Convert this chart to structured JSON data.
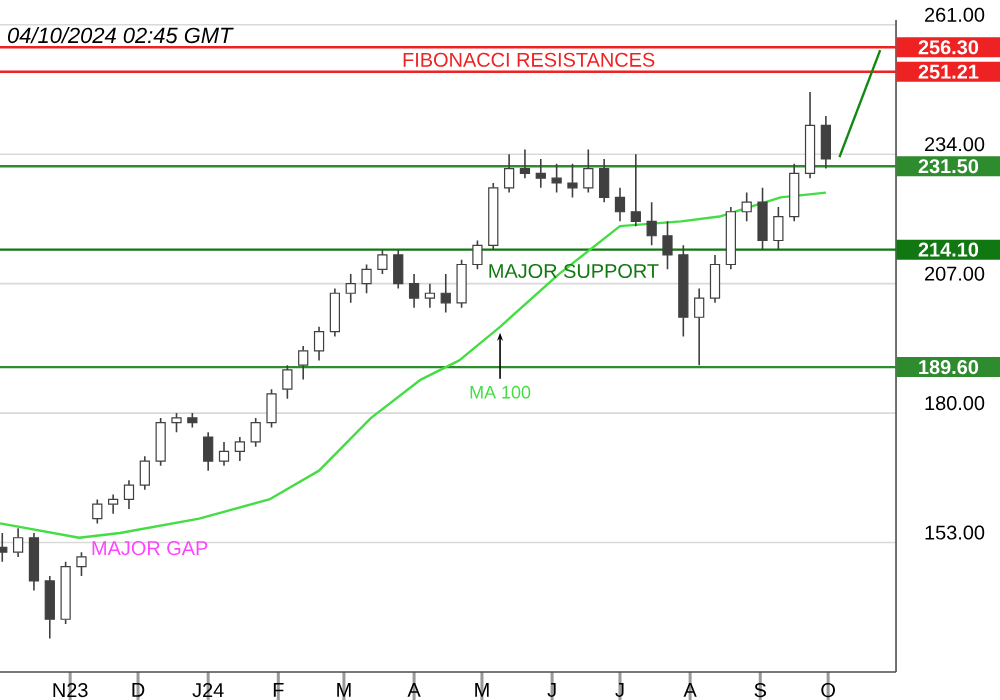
{
  "chart_data": {
    "type": "candlestick",
    "x": [
      "2023-10-02",
      "2023-10-09",
      "2023-10-16",
      "2023-10-23",
      "2023-10-30",
      "2023-11-06",
      "2023-11-13",
      "2023-11-20",
      "2023-11-27",
      "2023-12-04",
      "2023-12-11",
      "2023-12-18",
      "2023-12-25",
      "2024-01-01",
      "2024-01-08",
      "2024-01-15",
      "2024-01-22",
      "2024-01-29",
      "2024-02-05",
      "2024-02-12",
      "2024-02-19",
      "2024-02-26",
      "2024-03-04",
      "2024-03-11",
      "2024-03-18",
      "2024-03-25",
      "2024-04-01",
      "2024-04-08",
      "2024-04-15",
      "2024-04-22",
      "2024-04-29",
      "2024-05-06",
      "2024-05-13",
      "2024-05-20",
      "2024-05-27",
      "2024-06-03",
      "2024-06-10",
      "2024-06-17",
      "2024-06-24",
      "2024-07-01",
      "2024-07-08",
      "2024-07-15",
      "2024-07-22",
      "2024-07-29",
      "2024-08-05",
      "2024-08-12",
      "2024-08-19",
      "2024-08-26",
      "2024-09-02",
      "2024-09-09",
      "2024-09-16",
      "2024-09-23",
      "2024-09-30"
    ],
    "ohlc": [
      [
        152,
        155,
        149,
        151
      ],
      [
        151,
        156,
        150,
        154
      ],
      [
        154,
        155,
        143,
        145
      ],
      [
        145,
        146,
        133,
        137
      ],
      [
        137,
        149,
        136,
        148
      ],
      [
        148,
        151,
        146,
        150
      ],
      [
        158,
        162,
        157,
        161
      ],
      [
        161,
        163,
        159,
        162
      ],
      [
        162,
        166,
        160,
        165
      ],
      [
        165,
        171,
        164,
        170
      ],
      [
        170,
        179,
        169,
        178
      ],
      [
        178,
        180,
        176,
        179
      ],
      [
        179,
        180,
        177,
        178
      ],
      [
        175,
        176,
        168,
        170
      ],
      [
        170,
        174,
        169,
        172
      ],
      [
        172,
        175,
        170,
        174
      ],
      [
        174,
        179,
        173,
        178
      ],
      [
        178,
        185,
        177,
        184
      ],
      [
        185,
        190,
        183,
        189
      ],
      [
        190,
        194,
        187,
        193
      ],
      [
        193,
        198,
        191,
        197
      ],
      [
        197,
        206,
        196,
        205
      ],
      [
        205,
        209,
        203,
        207
      ],
      [
        207,
        211,
        205,
        210
      ],
      [
        210,
        214,
        209,
        213
      ],
      [
        213,
        214,
        206,
        207
      ],
      [
        207,
        209,
        202,
        204
      ],
      [
        204,
        207,
        202,
        205
      ],
      [
        205,
        209,
        201,
        203
      ],
      [
        203,
        212,
        202,
        211
      ],
      [
        211,
        216,
        210,
        215
      ],
      [
        215,
        228,
        214,
        227
      ],
      [
        227,
        234,
        226,
        231
      ],
      [
        231,
        235,
        229,
        230
      ],
      [
        230,
        233,
        227,
        229
      ],
      [
        229,
        232,
        226,
        228
      ],
      [
        228,
        232,
        225,
        227
      ],
      [
        227,
        235,
        226,
        231
      ],
      [
        231,
        233,
        224,
        225
      ],
      [
        225,
        227,
        220,
        222
      ],
      [
        222,
        234,
        219,
        220
      ],
      [
        220,
        224,
        215,
        217
      ],
      [
        217,
        220,
        210,
        213
      ],
      [
        213,
        215,
        196,
        200
      ],
      [
        200,
        206,
        190,
        204
      ],
      [
        204,
        213,
        203,
        211
      ],
      [
        211,
        223,
        210,
        222
      ],
      [
        222,
        226,
        220,
        224
      ],
      [
        224,
        227,
        214,
        216
      ],
      [
        216,
        223,
        214,
        221
      ],
      [
        221,
        232,
        220,
        230
      ],
      [
        230,
        247,
        229,
        240
      ],
      [
        240,
        242,
        231,
        233
      ]
    ],
    "series": [
      {
        "name": "MA 100",
        "type": "line",
        "color": "#44dd44",
        "x": [
          "2023-10-01",
          "2023-11-05",
          "2023-11-23",
          "2023-12-28",
          "2024-01-28",
          "2024-02-19",
          "2024-03-13",
          "2024-04-04",
          "2024-04-21",
          "2024-05-09",
          "2024-06-04",
          "2024-07-01",
          "2024-07-28",
          "2024-08-14",
          "2024-09-10",
          "2024-09-30"
        ],
        "values": [
          157,
          154,
          155,
          158,
          162,
          168,
          179,
          187,
          191,
          198,
          209,
          219,
          220,
          221,
          225,
          226
        ]
      },
      {
        "type": "line",
        "color": "#118811",
        "x": [
          "2024-10-06",
          "2024-10-24"
        ],
        "values": [
          233.4,
          255.7
        ]
      }
    ],
    "xlim": [
      "2023-10-01",
      "2024-10-31"
    ],
    "ylim": [
      126,
      262
    ],
    "xticks": [
      {
        "value": "2023-11-01",
        "label": "N23"
      },
      {
        "value": "2023-12-01",
        "label": "D"
      },
      {
        "value": "2024-01-01",
        "label": "J24"
      },
      {
        "value": "2024-02-01",
        "label": "F"
      },
      {
        "value": "2024-03-01",
        "label": "M"
      },
      {
        "value": "2024-04-01",
        "label": "A"
      },
      {
        "value": "2024-05-01",
        "label": "M"
      },
      {
        "value": "2024-06-01",
        "label": "J"
      },
      {
        "value": "2024-07-01",
        "label": "J"
      },
      {
        "value": "2024-08-01",
        "label": "A"
      },
      {
        "value": "2024-09-01",
        "label": "S"
      },
      {
        "value": "2024-10-01",
        "label": "O"
      }
    ],
    "yticks": [
      {
        "value": 153,
        "label": "153.00"
      },
      {
        "value": 180,
        "label": "180.00"
      },
      {
        "value": 207,
        "label": "207.00"
      },
      {
        "value": 234,
        "label": "234.00"
      },
      {
        "value": 261,
        "label": "261.00"
      }
    ],
    "grid": "y",
    "ref_lines": [
      {
        "axis": "y",
        "value": 256.3,
        "label": "256.30",
        "color": "#ee2222"
      },
      {
        "axis": "y",
        "value": 251.21,
        "label": "251.21",
        "color": "#ee2222"
      },
      {
        "axis": "y",
        "value": 231.5,
        "label": "231.50",
        "color": "#2e8b2e"
      },
      {
        "axis": "y",
        "value": 214.1,
        "label": "214.10",
        "color": "#117711"
      },
      {
        "axis": "y",
        "value": 189.6,
        "label": "189.60",
        "color": "#2e8b2e"
      }
    ],
    "annotations": [
      "04/10/2024 02:45 GMT",
      "FIBONACCI RESISTANCES",
      "MAJOR SUPPORT",
      "MAJOR GAP"
    ]
  }
}
